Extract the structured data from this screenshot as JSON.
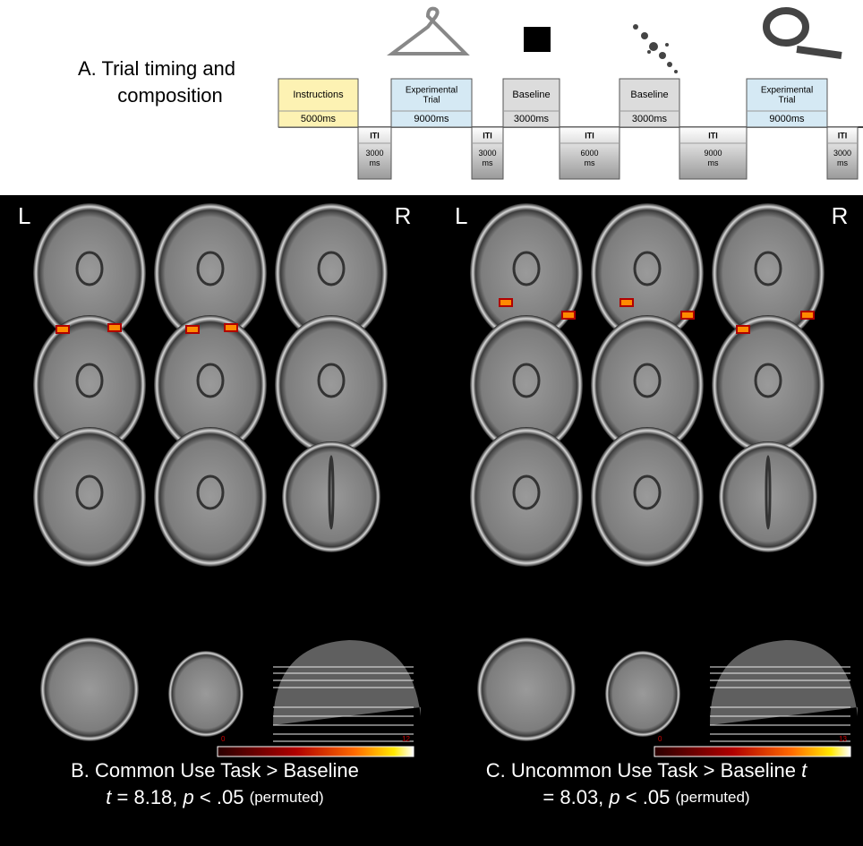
{
  "panel_a": {
    "title_line1": "A. Trial timing and",
    "title_line2": "composition",
    "tasks": [
      {
        "label": "Instructions",
        "duration": "5000ms",
        "color": "#fdf2b3"
      },
      {
        "label": "Experimental Trial",
        "duration": "9000ms",
        "color": "#d5e9f4"
      },
      {
        "label": "Baseline",
        "duration": "3000ms",
        "color": "#dcdcdc"
      },
      {
        "label": "Baseline",
        "duration": "3000ms",
        "color": "#dcdcdc"
      },
      {
        "label": "Experimental Trial",
        "duration": "9000ms",
        "color": "#d5e9f4"
      }
    ],
    "itis": [
      {
        "label": "ITI",
        "duration": "3000 ms"
      },
      {
        "label": "ITI",
        "duration": "3000 ms"
      },
      {
        "label": "ITI",
        "duration": "6000 ms"
      },
      {
        "label": "ITI",
        "duration": "9000 ms"
      },
      {
        "label": "ITI",
        "duration": "3000 ms"
      }
    ]
  },
  "panels": [
    {
      "left_label": "L",
      "right_label": "R",
      "colorbar_min": "0",
      "colorbar_max": "12",
      "caption_lines": [
        [
          {
            "text": "B. Common Use Task > Baseline",
            "style": "normal"
          }
        ],
        [
          {
            "text": "t",
            "style": "italic"
          },
          {
            "text": " = 8.18, ",
            "style": "normal"
          },
          {
            "text": "p",
            "style": "italic"
          },
          {
            "text": " < .05 ",
            "style": "normal"
          },
          {
            "text": "(permuted)",
            "style": "small"
          }
        ]
      ]
    },
    {
      "left_label": "L",
      "right_label": "R",
      "colorbar_min": "0",
      "colorbar_max": "13",
      "caption_lines": [
        [
          {
            "text": "C. Uncommon Use Task > Baseline ",
            "style": "normal"
          },
          {
            "text": "t",
            "style": "italic"
          }
        ],
        [
          {
            "text": "= 8.03, ",
            "style": "normal"
          },
          {
            "text": "p",
            "style": "italic"
          },
          {
            "text": " < .05 ",
            "style": "normal"
          },
          {
            "text": "(permuted)",
            "style": "small"
          }
        ]
      ]
    }
  ]
}
